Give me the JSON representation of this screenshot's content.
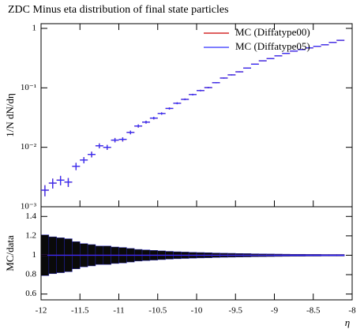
{
  "chart_data": [
    {
      "type": "log-points",
      "title": "ZDC Minus eta distribution of final state particles",
      "ylabel": "1/N dN/dη",
      "x": [
        -11.95,
        -11.85,
        -11.75,
        -11.65,
        -11.55,
        -11.45,
        -11.35,
        -11.25,
        -11.15,
        -11.05,
        -10.95,
        -10.85,
        -10.75,
        -10.65,
        -10.55,
        -10.45,
        -10.35,
        -10.25,
        -10.15,
        -10.05,
        -9.95,
        -9.85,
        -9.75,
        -9.65,
        -9.55,
        -9.45,
        -9.35,
        -9.25,
        -9.15,
        -9.05,
        -8.95,
        -8.85,
        -8.75,
        -8.65,
        -8.55,
        -8.45,
        -8.35,
        -8.25,
        -8.15
      ],
      "series": [
        {
          "name": "MC (Diffatype00)",
          "color": "#cc0000",
          "values": [
            0.0019,
            0.0025,
            0.0028,
            0.0026,
            0.0048,
            0.0061,
            0.0076,
            0.0106,
            0.01,
            0.0132,
            0.0136,
            0.0178,
            0.0228,
            0.0265,
            0.031,
            0.037,
            0.045,
            0.055,
            0.064,
            0.077,
            0.09,
            0.101,
            0.122,
            0.146,
            0.165,
            0.186,
            0.215,
            0.25,
            0.285,
            0.31,
            0.345,
            0.38,
            0.415,
            0.44,
            0.47,
            0.5,
            0.53,
            0.58,
            0.63
          ]
        },
        {
          "name": "MC (Diffatype05)",
          "color": "#3030ff",
          "values": [
            0.0019,
            0.0025,
            0.0028,
            0.0026,
            0.0048,
            0.0061,
            0.0076,
            0.0106,
            0.01,
            0.0132,
            0.0136,
            0.0178,
            0.0228,
            0.0265,
            0.031,
            0.037,
            0.045,
            0.055,
            0.064,
            0.077,
            0.09,
            0.101,
            0.122,
            0.146,
            0.165,
            0.186,
            0.215,
            0.25,
            0.285,
            0.31,
            0.345,
            0.38,
            0.415,
            0.44,
            0.47,
            0.5,
            0.53,
            0.58,
            0.63
          ]
        }
      ],
      "xlim": [
        -12,
        -8
      ],
      "ylim": [
        0.001,
        1.2
      ],
      "log_y": true,
      "yticks": [
        {
          "value": 1,
          "label": "1"
        },
        {
          "value": 0.1,
          "label": "10⁻¹"
        },
        {
          "value": 0.01,
          "label": "10⁻²"
        },
        {
          "value": 0.001,
          "label": "10⁻³"
        }
      ],
      "legend": "upper right"
    },
    {
      "type": "ratio",
      "ylabel": "MC/data",
      "xlabel": "η",
      "x": [
        -11.95,
        -11.85,
        -11.75,
        -11.65,
        -11.55,
        -11.45,
        -11.35,
        -11.25,
        -11.15,
        -11.05,
        -10.95,
        -10.85,
        -10.75,
        -10.65,
        -10.55,
        -10.45,
        -10.35,
        -10.25,
        -10.15,
        -10.05,
        -9.95,
        -9.85,
        -9.75,
        -9.65,
        -9.55,
        -9.45,
        -9.35,
        -9.25,
        -9.15,
        -9.05,
        -8.95,
        -8.85,
        -8.75,
        -8.65,
        -8.55,
        -8.45,
        -8.35,
        -8.25,
        -8.15
      ],
      "band": [
        0.21,
        0.19,
        0.18,
        0.17,
        0.14,
        0.12,
        0.11,
        0.095,
        0.095,
        0.085,
        0.08,
        0.07,
        0.06,
        0.055,
        0.05,
        0.045,
        0.04,
        0.036,
        0.033,
        0.03,
        0.028,
        0.026,
        0.023,
        0.021,
        0.02,
        0.018,
        0.017,
        0.015,
        0.014,
        0.013,
        0.012,
        0.011,
        0.01,
        0.01,
        0.009,
        0.009,
        0.008,
        0.008,
        0.008
      ],
      "series": [
        {
          "color": "#cc0000",
          "values": [
            1,
            1,
            1,
            1,
            1,
            1,
            1,
            1,
            1,
            1,
            1,
            1,
            1,
            1,
            1,
            1,
            1,
            1,
            1,
            1,
            1,
            1,
            1,
            1,
            1,
            1,
            1,
            1,
            1,
            1,
            1,
            1,
            1,
            1,
            1,
            1,
            1,
            1,
            1
          ]
        },
        {
          "color": "#3030ff",
          "values": [
            1,
            1,
            1,
            1,
            1,
            1,
            1,
            1,
            1,
            1,
            1,
            1,
            1,
            1,
            1,
            1,
            1,
            1,
            1,
            1,
            1,
            1,
            1,
            1,
            1,
            1,
            1,
            1,
            1,
            1,
            1,
            1,
            1,
            1,
            1,
            1,
            1,
            1,
            1
          ]
        }
      ],
      "xlim": [
        -12,
        -8
      ],
      "ylim": [
        0.54,
        1.5
      ],
      "xticks": [
        -12,
        -11.5,
        -11,
        -10.5,
        -10,
        -9.5,
        -9,
        -8.5,
        -8
      ],
      "yticks": [
        0.6,
        0.8,
        1,
        1.2,
        1.4
      ]
    }
  ]
}
